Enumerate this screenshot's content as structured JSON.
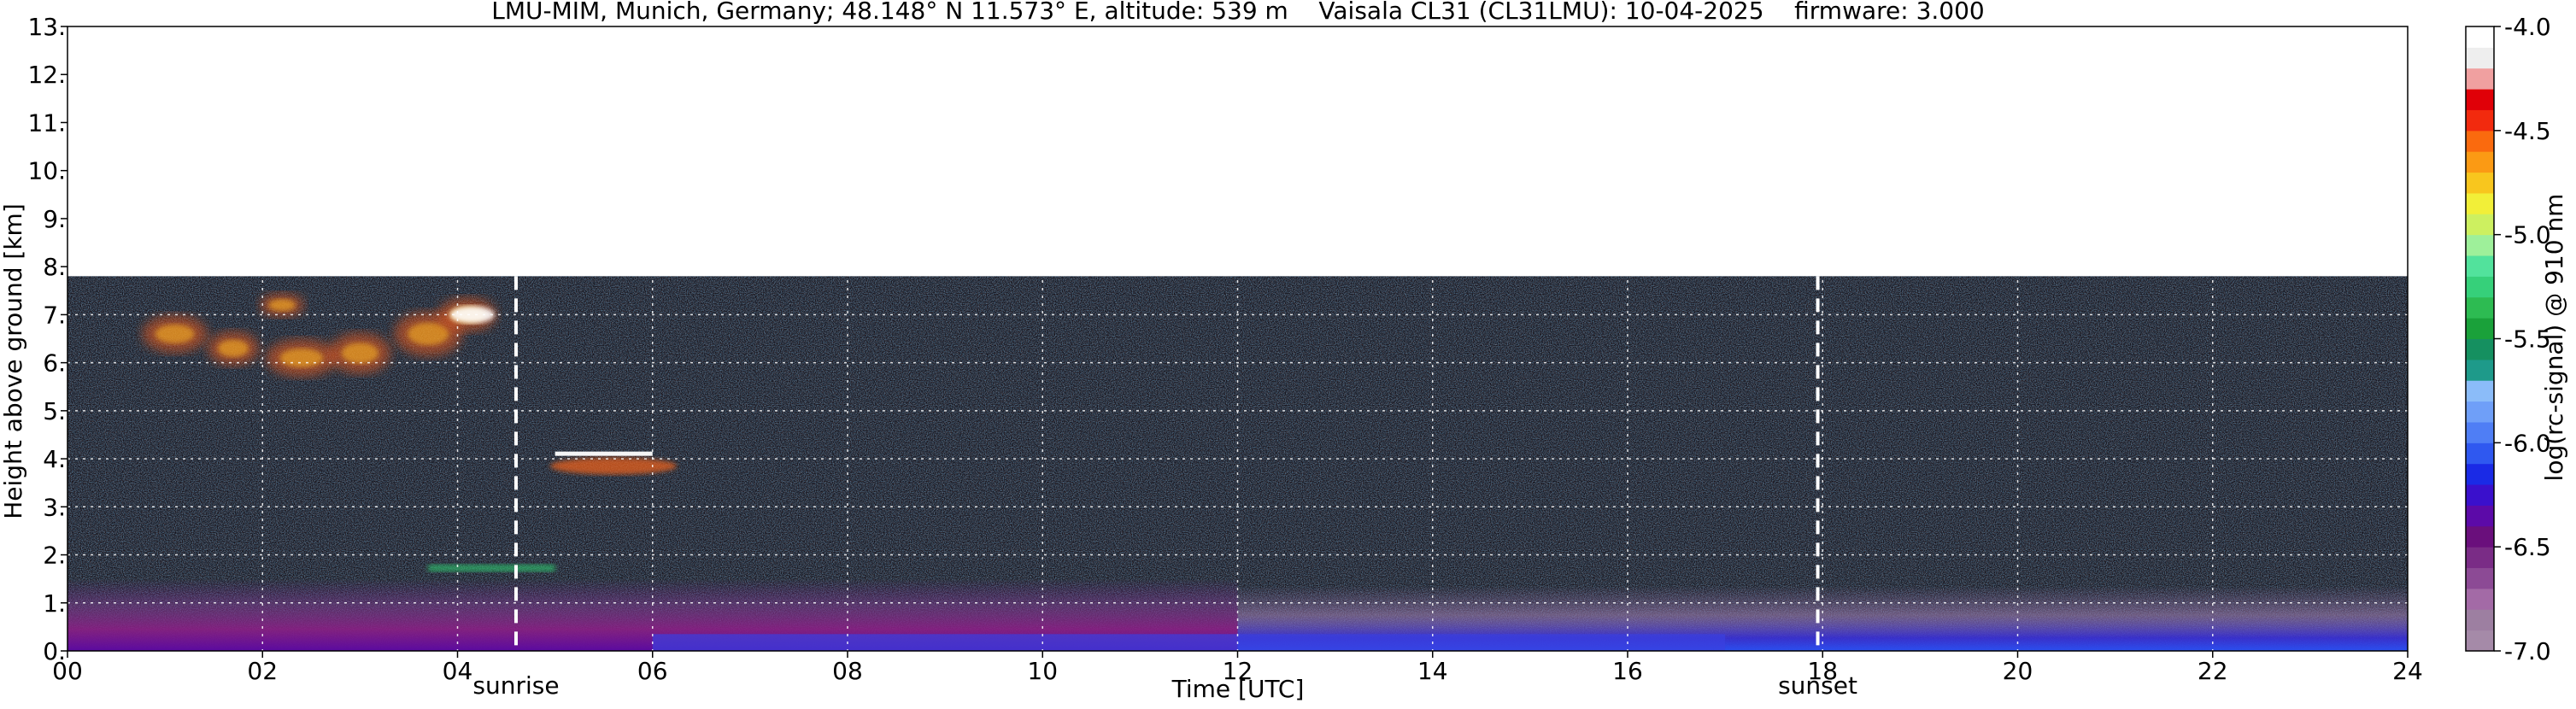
{
  "chart_data": {
    "type": "heatmap",
    "title": "LMU-MIM, Munich, Germany; 48.148° N 11.573° E, altitude: 539 m    Vaisala CL31 (CL31LMU): 10-04-2025    firmware: 3.000",
    "xlabel": "Time [UTC]",
    "ylabel": "Height above ground [km]",
    "xlim": [
      0,
      24
    ],
    "ylim": [
      0,
      13
    ],
    "x_ticks": [
      "00",
      "02",
      "04",
      "06",
      "08",
      "10",
      "12",
      "14",
      "16",
      "18",
      "20",
      "22",
      "24"
    ],
    "y_ticks": [
      "0.",
      "1.",
      "2.",
      "3.",
      "4.",
      "5.",
      "6.",
      "7.",
      "8.",
      "9.",
      "10.",
      "11.",
      "12.",
      "13."
    ],
    "grid": true,
    "data_ceiling_km": 7.8,
    "markers": [
      {
        "label": "sunrise",
        "time_h": 4.6
      },
      {
        "label": "sunset",
        "time_h": 17.95
      }
    ],
    "colorbar": {
      "label": "log(rc-signal) @ 910 nm",
      "min": -7.0,
      "max": -4.0,
      "ticks": [
        "-4.0",
        "-4.5",
        "-5.0",
        "-5.5",
        "-6.0",
        "-6.5",
        "-7.0"
      ],
      "colors": [
        "#a58aa8",
        "#9d7fa1",
        "#a36aa6",
        "#8c4a95",
        "#7a2c86",
        "#6a0f7c",
        "#5c0aa8",
        "#3a10cc",
        "#1a2ae6",
        "#2f58f0",
        "#4f7ef5",
        "#6f9ff8",
        "#8bbcf9",
        "#1e9a8a",
        "#159060",
        "#1aa13a",
        "#2dbb52",
        "#36d07a",
        "#52e29c",
        "#9ef09a",
        "#cdf060",
        "#f2ef38",
        "#f8c61e",
        "#fb9a14",
        "#fa6a0e",
        "#f22a0e",
        "#e00008",
        "#f0a0a0",
        "#eeeeee",
        "#ffffff"
      ]
    },
    "features": [
      {
        "name": "upper cloud layer",
        "t_start": 0.8,
        "t_end": 4.5,
        "h_low_km": 5.6,
        "h_high_km": 7.6
      },
      {
        "name": "mid-level cloud",
        "t_start": 5.0,
        "t_end": 6.3,
        "h_low_km": 3.7,
        "h_high_km": 4.2
      },
      {
        "name": "thin layer",
        "t_start": 3.7,
        "t_end": 5.0,
        "h_low_km": 1.65,
        "h_high_km": 1.8
      },
      {
        "name": "boundary layer",
        "t_start": 0.0,
        "t_end": 24.0,
        "h_low_km": 0.0,
        "h_high_km": 1.5
      }
    ]
  }
}
